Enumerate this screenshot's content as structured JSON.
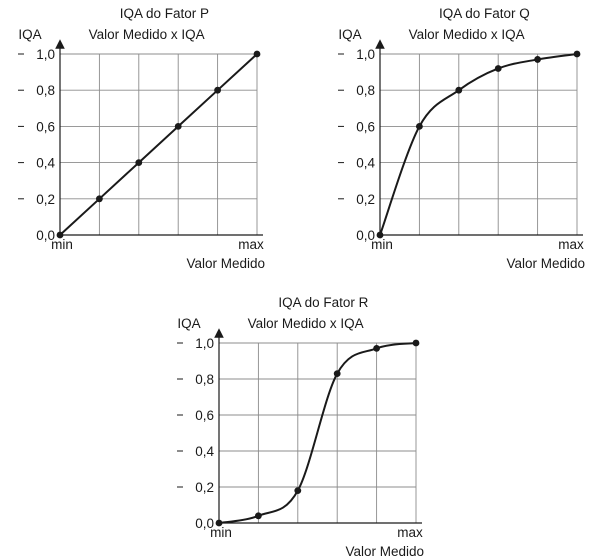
{
  "chart_data": [
    {
      "type": "line",
      "title": "IQA do Fator P",
      "subtitle": "Valor Medido x IQA",
      "ylabel": "IQA",
      "xlabel": "Valor Medido",
      "x_min_label": "min",
      "x_max_label": "max",
      "ylim": [
        0,
        1
      ],
      "y_ticks": [
        "0,0",
        "0,2",
        "0,4",
        "0,6",
        "0,8",
        "1,0"
      ],
      "grid": true,
      "x": [
        0,
        1,
        2,
        3,
        4,
        5
      ],
      "values": [
        0,
        0.2,
        0.4,
        0.6,
        0.8,
        1.0
      ]
    },
    {
      "type": "line",
      "title": "IQA do Fator Q",
      "subtitle": "Valor Medido x IQA",
      "ylabel": "IQA",
      "xlabel": "Valor Medido",
      "x_min_label": "min",
      "x_max_label": "max",
      "ylim": [
        0,
        1
      ],
      "y_ticks": [
        "0,0",
        "0,2",
        "0,4",
        "0,6",
        "0,8",
        "1,0"
      ],
      "grid": true,
      "x": [
        0,
        1,
        2,
        3,
        4,
        5
      ],
      "values": [
        0,
        0.6,
        0.8,
        0.92,
        0.97,
        1.0
      ]
    },
    {
      "type": "line",
      "title": "IQA do Fator R",
      "subtitle": "Valor Medido x IQA",
      "ylabel": "IQA",
      "xlabel": "Valor Medido",
      "x_min_label": "min",
      "x_max_label": "max",
      "ylim": [
        0,
        1
      ],
      "y_ticks": [
        "0,0",
        "0,2",
        "0,4",
        "0,6",
        "0,8",
        "1,0"
      ],
      "grid": true,
      "x": [
        0,
        1,
        2,
        3,
        4,
        5
      ],
      "values": [
        0,
        0.04,
        0.18,
        0.83,
        0.97,
        1.0
      ]
    }
  ]
}
